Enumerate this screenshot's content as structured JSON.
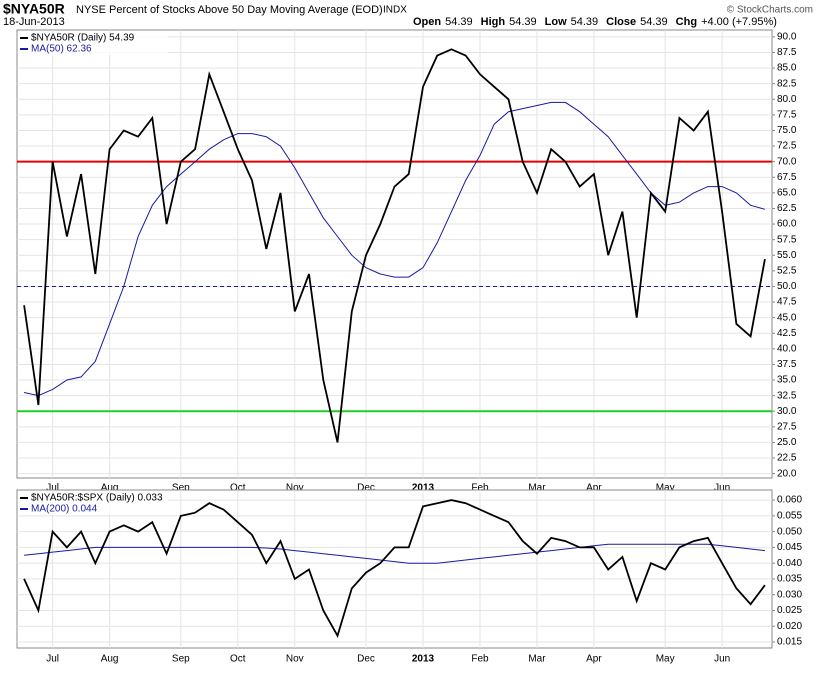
{
  "chart_data": [
    {
      "type": "line",
      "title": "$NYA50R",
      "subtitle": "NYSE Percent of Stocks Above 50 Day Moving Average (EOD)",
      "exchange": "INDX",
      "date": "18-Jun-2013",
      "quote": [
        {
          "label": "Open",
          "value": "54.39"
        },
        {
          "label": "High",
          "value": "54.39"
        },
        {
          "label": "Low",
          "value": "54.39"
        },
        {
          "label": "Close",
          "value": "54.39"
        },
        {
          "label": "Chg",
          "value": "+4.00 (+7.95%)"
        }
      ],
      "credit": "© StockCharts.com",
      "categories": [
        null,
        null,
        "Jul",
        null,
        null,
        null,
        "Aug",
        null,
        null,
        null,
        null,
        "Sep",
        null,
        null,
        null,
        "Oct",
        null,
        null,
        null,
        "Nov",
        null,
        null,
        null,
        null,
        "Dec",
        null,
        null,
        null,
        "2013",
        null,
        null,
        null,
        "Feb",
        null,
        null,
        null,
        "Mar",
        null,
        null,
        null,
        "Apr",
        null,
        null,
        null,
        null,
        "May",
        null,
        null,
        null,
        "Jun",
        null,
        null,
        null
      ],
      "series": [
        {
          "name": "$NYA50R (Daily) 54.39",
          "color": "#000000",
          "values": [
            47,
            31,
            70,
            58,
            68,
            52,
            72,
            75,
            74,
            77,
            60,
            70,
            72,
            84,
            78,
            72,
            67,
            56,
            65,
            46,
            52,
            35,
            25,
            46,
            55,
            60,
            66,
            68,
            82,
            87,
            88,
            87,
            84,
            82,
            80,
            70,
            65,
            72,
            70,
            66,
            68,
            55,
            62,
            45,
            65,
            62,
            77,
            75,
            78,
            62,
            44,
            42,
            54.39
          ]
        },
        {
          "name": "MA(50) 62.36",
          "color": "#1a1aa0",
          "values": [
            33,
            32.5,
            33.5,
            35,
            35.5,
            38,
            44,
            50,
            58,
            63,
            66,
            68,
            70,
            72,
            73.5,
            74.5,
            74.5,
            74,
            72.5,
            69,
            65,
            61,
            58,
            55,
            53,
            52,
            51.5,
            51.5,
            53,
            57,
            62,
            67,
            71,
            76,
            78,
            78.5,
            79,
            79.5,
            79.5,
            78,
            76,
            74,
            71,
            68,
            65,
            63,
            63.5,
            65,
            66,
            66,
            65,
            63,
            62.36
          ]
        }
      ],
      "hlines": [
        {
          "value": 70,
          "color": "#e00000",
          "dash": false
        },
        {
          "value": 30,
          "color": "#20d020",
          "dash": false
        },
        {
          "value": 50,
          "color": "#1a1aa0",
          "dash": true
        }
      ],
      "ylim": [
        19.3,
        91.1
      ],
      "yticks": [
        {
          "value": 20,
          "label": "20.0"
        },
        {
          "value": 22.5,
          "label": "22.5"
        },
        {
          "value": 25,
          "label": "25.0"
        },
        {
          "value": 27.5,
          "label": "27.5"
        },
        {
          "value": 30,
          "label": "30.0"
        },
        {
          "value": 32.5,
          "label": "32.5"
        },
        {
          "value": 35,
          "label": "35.0"
        },
        {
          "value": 37.5,
          "label": "37.5"
        },
        {
          "value": 40,
          "label": "40.0"
        },
        {
          "value": 42.5,
          "label": "42.5"
        },
        {
          "value": 45,
          "label": "45.0"
        },
        {
          "value": 47.5,
          "label": "47.5"
        },
        {
          "value": 50,
          "label": "50.0"
        },
        {
          "value": 52.5,
          "label": "52.5"
        },
        {
          "value": 55,
          "label": "55.0"
        },
        {
          "value": 57.5,
          "label": "57.5"
        },
        {
          "value": 60,
          "label": "60.0"
        },
        {
          "value": 62.5,
          "label": "62.5"
        },
        {
          "value": 65,
          "label": "65.0"
        },
        {
          "value": 67.5,
          "label": "67.5"
        },
        {
          "value": 70,
          "label": "70.0"
        },
        {
          "value": 72.5,
          "label": "72.5"
        },
        {
          "value": 75,
          "label": "75.0"
        },
        {
          "value": 77.5,
          "label": "77.5"
        },
        {
          "value": 80,
          "label": "80.0"
        },
        {
          "value": 82.5,
          "label": "82.5"
        },
        {
          "value": 85,
          "label": "85.0"
        },
        {
          "value": 87.5,
          "label": "87.5"
        },
        {
          "value": 90,
          "label": "90.0"
        }
      ],
      "grid": true
    },
    {
      "type": "line",
      "categories": [
        null,
        null,
        "Jul",
        null,
        null,
        null,
        "Aug",
        null,
        null,
        null,
        null,
        "Sep",
        null,
        null,
        null,
        "Oct",
        null,
        null,
        null,
        "Nov",
        null,
        null,
        null,
        null,
        "Dec",
        null,
        null,
        null,
        "2013",
        null,
        null,
        null,
        "Feb",
        null,
        null,
        null,
        "Mar",
        null,
        null,
        null,
        "Apr",
        null,
        null,
        null,
        null,
        "May",
        null,
        null,
        null,
        "Jun",
        null,
        null,
        null
      ],
      "series": [
        {
          "name": "$NYA50R:$SPX (Daily) 0.033",
          "color": "#000000",
          "values": [
            0.035,
            0.025,
            0.05,
            0.045,
            0.05,
            0.04,
            0.05,
            0.052,
            0.05,
            0.053,
            0.043,
            0.055,
            0.056,
            0.059,
            0.057,
            0.053,
            0.049,
            0.04,
            0.047,
            0.035,
            0.038,
            0.025,
            0.017,
            0.032,
            0.037,
            0.04,
            0.045,
            0.045,
            0.058,
            0.059,
            0.06,
            0.059,
            0.057,
            0.055,
            0.053,
            0.047,
            0.043,
            0.048,
            0.047,
            0.045,
            0.045,
            0.038,
            0.042,
            0.028,
            0.04,
            0.038,
            0.045,
            0.047,
            0.048,
            0.04,
            0.032,
            0.027,
            0.033
          ]
        },
        {
          "name": "MA(200) 0.044",
          "color": "#1a1aa0",
          "values": [
            0.0425,
            0.043,
            0.0435,
            0.044,
            0.0445,
            0.045,
            0.045,
            0.045,
            0.045,
            0.045,
            0.045,
            0.045,
            0.045,
            0.045,
            0.045,
            0.045,
            0.045,
            0.0448,
            0.0445,
            0.044,
            0.0435,
            0.043,
            0.0425,
            0.042,
            0.0415,
            0.041,
            0.0405,
            0.04,
            0.04,
            0.04,
            0.0405,
            0.041,
            0.0415,
            0.042,
            0.0425,
            0.043,
            0.0435,
            0.044,
            0.0445,
            0.045,
            0.0455,
            0.046,
            0.046,
            0.046,
            0.046,
            0.046,
            0.046,
            0.046,
            0.046,
            0.0455,
            0.045,
            0.0445,
            0.044
          ]
        }
      ],
      "ylim": [
        0.0131,
        0.0632
      ],
      "yticks": [
        {
          "value": 0.015,
          "label": "0.015"
        },
        {
          "value": 0.02,
          "label": "0.020"
        },
        {
          "value": 0.025,
          "label": "0.025"
        },
        {
          "value": 0.03,
          "label": "0.030"
        },
        {
          "value": 0.035,
          "label": "0.035"
        },
        {
          "value": 0.04,
          "label": "0.040"
        },
        {
          "value": 0.045,
          "label": "0.045"
        },
        {
          "value": 0.05,
          "label": "0.050"
        },
        {
          "value": 0.055,
          "label": "0.055"
        },
        {
          "value": 0.06,
          "label": "0.060"
        }
      ],
      "grid": true
    }
  ]
}
